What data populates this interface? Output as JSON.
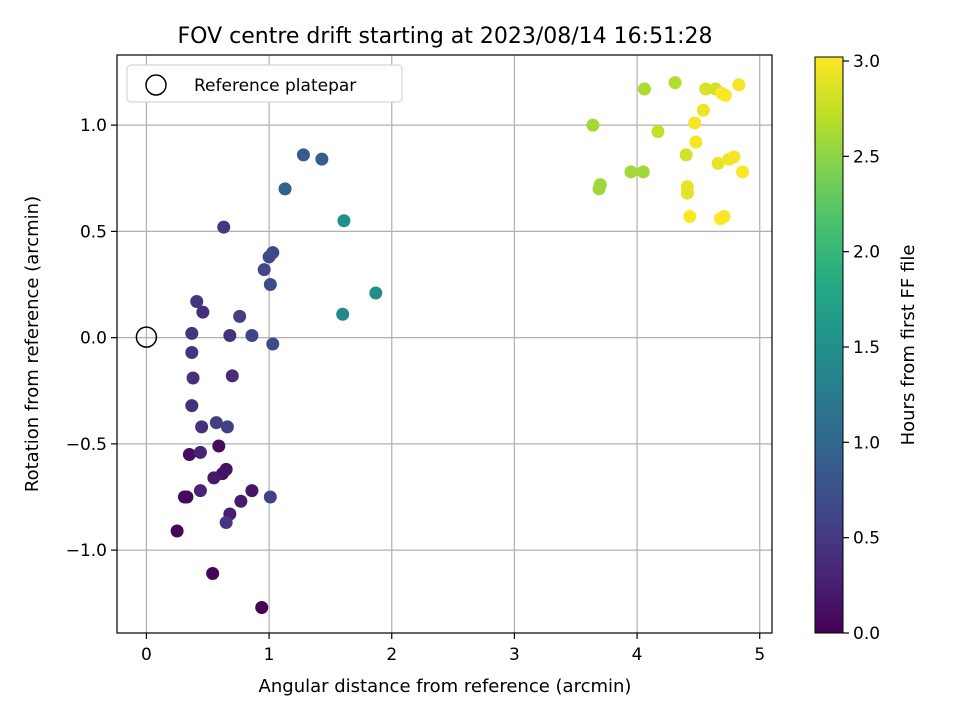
{
  "chart_data": {
    "type": "scatter",
    "title": "FOV centre drift starting at 2023/08/14 16:51:28",
    "xlabel": "Angular distance from reference (arcmin)",
    "ylabel": "Rotation from reference (arcmin)",
    "xlim": [
      -0.24,
      5.1
    ],
    "ylim": [
      -1.39,
      1.33
    ],
    "x_ticks": [
      0,
      1,
      2,
      3,
      4,
      5
    ],
    "x_tick_labels": [
      "0",
      "1",
      "2",
      "3",
      "4",
      "5"
    ],
    "y_ticks": [
      -1.0,
      -0.5,
      0.0,
      0.5,
      1.0
    ],
    "y_tick_labels": [
      "−1.0",
      "−0.5",
      "0.0",
      "0.5",
      "1.0"
    ],
    "grid": true,
    "legend_placement": "upper-left",
    "reference": {
      "label": "Reference platepar",
      "x": 0,
      "y": 0
    },
    "colorbar": {
      "label": "Hours from first FF file",
      "colormap": "viridis",
      "range": [
        0.0,
        3.0
      ],
      "ticks": [
        0.0,
        0.5,
        1.0,
        1.5,
        2.0,
        2.5,
        3.0
      ],
      "tick_labels": [
        "0.0",
        "0.5",
        "1.0",
        "1.5",
        "2.0",
        "2.5",
        "3.0"
      ]
    },
    "points": [
      {
        "x": 0.94,
        "y": -1.27,
        "t": 0.02
      },
      {
        "x": 0.54,
        "y": -1.11,
        "t": 0.03
      },
      {
        "x": 0.25,
        "y": -0.91,
        "t": 0.04
      },
      {
        "x": 0.31,
        "y": -0.75,
        "t": 0.06
      },
      {
        "x": 0.33,
        "y": -0.75,
        "t": 0.07
      },
      {
        "x": 0.35,
        "y": -0.55,
        "t": 0.1
      },
      {
        "x": 0.59,
        "y": -0.51,
        "t": 0.09
      },
      {
        "x": 0.62,
        "y": -0.64,
        "t": 0.13
      },
      {
        "x": 0.65,
        "y": -0.62,
        "t": 0.15
      },
      {
        "x": 0.55,
        "y": -0.66,
        "t": 0.2
      },
      {
        "x": 0.86,
        "y": -0.72,
        "t": 0.18
      },
      {
        "x": 0.77,
        "y": -0.77,
        "t": 0.22
      },
      {
        "x": 0.68,
        "y": -0.83,
        "t": 0.25
      },
      {
        "x": 0.44,
        "y": -0.72,
        "t": 0.3
      },
      {
        "x": 0.44,
        "y": -0.54,
        "t": 0.28
      },
      {
        "x": 0.45,
        "y": -0.42,
        "t": 0.4
      },
      {
        "x": 0.65,
        "y": -0.87,
        "t": 0.48
      },
      {
        "x": 1.01,
        "y": -0.75,
        "t": 0.58
      },
      {
        "x": 0.57,
        "y": -0.4,
        "t": 0.55
      },
      {
        "x": 0.66,
        "y": -0.42,
        "t": 0.55
      },
      {
        "x": 0.37,
        "y": -0.32,
        "t": 0.42
      },
      {
        "x": 0.38,
        "y": -0.19,
        "t": 0.4
      },
      {
        "x": 0.37,
        "y": -0.07,
        "t": 0.45
      },
      {
        "x": 0.37,
        "y": 0.02,
        "t": 0.46
      },
      {
        "x": 0.7,
        "y": -0.18,
        "t": 0.38
      },
      {
        "x": 0.68,
        "y": 0.01,
        "t": 0.43
      },
      {
        "x": 0.86,
        "y": 0.01,
        "t": 0.6
      },
      {
        "x": 1.03,
        "y": -0.03,
        "t": 0.68
      },
      {
        "x": 0.46,
        "y": 0.12,
        "t": 0.4
      },
      {
        "x": 0.41,
        "y": 0.17,
        "t": 0.45
      },
      {
        "x": 0.76,
        "y": 0.1,
        "t": 0.55
      },
      {
        "x": 1.01,
        "y": 0.25,
        "t": 0.7
      },
      {
        "x": 0.96,
        "y": 0.32,
        "t": 0.63
      },
      {
        "x": 1.0,
        "y": 0.38,
        "t": 0.66
      },
      {
        "x": 1.03,
        "y": 0.4,
        "t": 0.64
      },
      {
        "x": 0.63,
        "y": 0.52,
        "t": 0.5
      },
      {
        "x": 1.13,
        "y": 0.7,
        "t": 0.95
      },
      {
        "x": 1.28,
        "y": 0.86,
        "t": 0.85
      },
      {
        "x": 1.43,
        "y": 0.84,
        "t": 0.88
      },
      {
        "x": 1.61,
        "y": 0.55,
        "t": 1.5
      },
      {
        "x": 1.87,
        "y": 0.21,
        "t": 1.45
      },
      {
        "x": 1.6,
        "y": 0.11,
        "t": 1.4
      },
      {
        "x": 3.64,
        "y": 1.0,
        "t": 2.58
      },
      {
        "x": 3.7,
        "y": 0.72,
        "t": 2.55
      },
      {
        "x": 3.69,
        "y": 0.7,
        "t": 2.55
      },
      {
        "x": 3.95,
        "y": 0.78,
        "t": 2.57
      },
      {
        "x": 4.05,
        "y": 0.78,
        "t": 2.57
      },
      {
        "x": 4.06,
        "y": 1.17,
        "t": 2.62
      },
      {
        "x": 4.17,
        "y": 0.97,
        "t": 2.72
      },
      {
        "x": 4.31,
        "y": 1.2,
        "t": 2.65
      },
      {
        "x": 4.4,
        "y": 0.86,
        "t": 2.8
      },
      {
        "x": 4.41,
        "y": 0.71,
        "t": 2.9
      },
      {
        "x": 4.41,
        "y": 0.68,
        "t": 2.88
      },
      {
        "x": 4.43,
        "y": 0.57,
        "t": 3.0
      },
      {
        "x": 4.47,
        "y": 1.01,
        "t": 2.97
      },
      {
        "x": 4.48,
        "y": 0.92,
        "t": 2.96
      },
      {
        "x": 4.54,
        "y": 1.07,
        "t": 2.92
      },
      {
        "x": 4.56,
        "y": 1.17,
        "t": 2.83
      },
      {
        "x": 4.64,
        "y": 1.17,
        "t": 2.8
      },
      {
        "x": 4.66,
        "y": 0.82,
        "t": 2.9
      },
      {
        "x": 4.68,
        "y": 0.56,
        "t": 3.0
      },
      {
        "x": 4.69,
        "y": 1.15,
        "t": 3.0
      },
      {
        "x": 4.71,
        "y": 0.57,
        "t": 3.0
      },
      {
        "x": 4.72,
        "y": 1.14,
        "t": 2.98
      },
      {
        "x": 4.75,
        "y": 0.84,
        "t": 2.96
      },
      {
        "x": 4.79,
        "y": 0.85,
        "t": 2.96
      },
      {
        "x": 4.83,
        "y": 1.19,
        "t": 2.96
      },
      {
        "x": 4.86,
        "y": 0.78,
        "t": 2.98
      }
    ]
  }
}
